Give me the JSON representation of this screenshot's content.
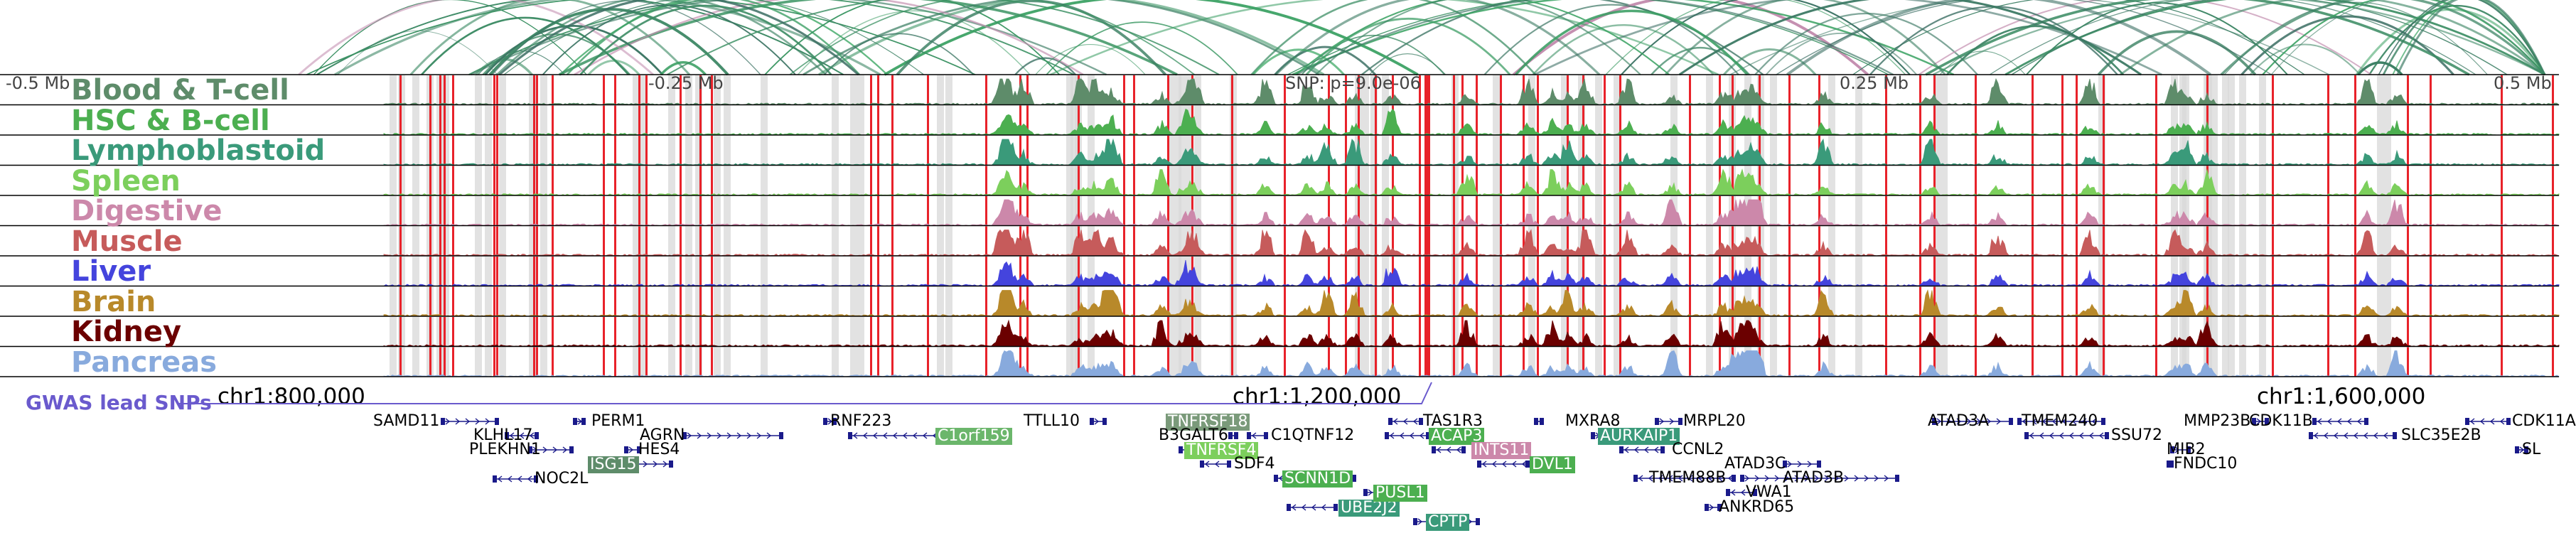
{
  "axis": {
    "left_label": "-0.5 Mb",
    "mid_left_label": "-0.25 Mb",
    "snp_label": "SNP: p=9.0e-06",
    "mid_right_label": "0.25 Mb",
    "right_label": "0.5 Mb"
  },
  "tracks": [
    {
      "name": "Blood & T-cell",
      "color": "#5e8c6a"
    },
    {
      "name": "HSC & B-cell",
      "color": "#4caf50"
    },
    {
      "name": "Lymphoblastoid",
      "color": "#3a9a7a"
    },
    {
      "name": "Spleen",
      "color": "#7ccf5c"
    },
    {
      "name": "Digestive",
      "color": "#cc88aa"
    },
    {
      "name": "Muscle",
      "color": "#c65b5b"
    },
    {
      "name": "Liver",
      "color": "#4444dd"
    },
    {
      "name": "Brain",
      "color": "#b8892a"
    },
    {
      "name": "Kidney",
      "color": "#6b0000"
    },
    {
      "name": "Pancreas",
      "color": "#88aadd"
    }
  ],
  "gwas": {
    "label": "GWAS lead SNPs",
    "color": "#6a5acd"
  },
  "coordinates": [
    "chr1:800,000",
    "chr1:1,200,000",
    "chr1:1,600,000"
  ],
  "genes": [
    {
      "name": "SAMD11",
      "highlight": false
    },
    {
      "name": "KLHL17",
      "highlight": false
    },
    {
      "name": "PLEKHN1",
      "highlight": false
    },
    {
      "name": "NOC2L",
      "highlight": false
    },
    {
      "name": "PERM1",
      "highlight": false
    },
    {
      "name": "AGRN",
      "highlight": false
    },
    {
      "name": "HES4",
      "highlight": false
    },
    {
      "name": "ISG15",
      "highlight": true,
      "color": "#5e8c6a"
    },
    {
      "name": "RNF223",
      "highlight": false
    },
    {
      "name": "C1orf159",
      "highlight": true,
      "color": "#6bb66b"
    },
    {
      "name": "TTLL10",
      "highlight": false
    },
    {
      "name": "TNFRSF18",
      "highlight": true,
      "color": "#7a9a7a"
    },
    {
      "name": "B3GALT6",
      "highlight": false
    },
    {
      "name": "TNFRSF4",
      "highlight": true,
      "color": "#7ccf5c"
    },
    {
      "name": "C1QTNF12",
      "highlight": false
    },
    {
      "name": "SDF4",
      "highlight": false
    },
    {
      "name": "SCNN1D",
      "highlight": true,
      "color": "#4caf50"
    },
    {
      "name": "UBE2J2",
      "highlight": true,
      "color": "#3a9a7a"
    },
    {
      "name": "PUSL1",
      "highlight": true,
      "color": "#4caf50"
    },
    {
      "name": "CPTP",
      "highlight": true,
      "color": "#3a9a7a"
    },
    {
      "name": "TAS1R3",
      "highlight": false
    },
    {
      "name": "ACAP3",
      "highlight": true,
      "color": "#4caf50"
    },
    {
      "name": "INTS11",
      "highlight": true,
      "color": "#cc88aa"
    },
    {
      "name": "DVL1",
      "highlight": true,
      "color": "#4caf50"
    },
    {
      "name": "MXRA8",
      "highlight": false
    },
    {
      "name": "AURKAIP1",
      "highlight": true,
      "color": "#3a9a7a"
    },
    {
      "name": "MRPL20",
      "highlight": false
    },
    {
      "name": "CCNL2",
      "highlight": false
    },
    {
      "name": "TMEM88B",
      "highlight": false
    },
    {
      "name": "VWA1",
      "highlight": false
    },
    {
      "name": "ANKRD65",
      "highlight": false
    },
    {
      "name": "ATAD3C",
      "highlight": false
    },
    {
      "name": "ATAD3B",
      "highlight": false
    },
    {
      "name": "ATAD3A",
      "highlight": false
    },
    {
      "name": "TMEM240",
      "highlight": false
    },
    {
      "name": "SSU72",
      "highlight": false
    },
    {
      "name": "MMP23B",
      "highlight": false
    },
    {
      "name": "MIB2",
      "highlight": false
    },
    {
      "name": "FNDC10",
      "highlight": false
    },
    {
      "name": "CDK11B",
      "highlight": false
    },
    {
      "name": "SLC35E2B",
      "highlight": false
    },
    {
      "name": "CDK11A",
      "highlight": false
    },
    {
      "name": "SL",
      "highlight": false
    }
  ],
  "colors": {
    "marker_red": "#e8222a",
    "shade_gray": "#d8d8d8",
    "arc_green": "#3a8a6a"
  }
}
